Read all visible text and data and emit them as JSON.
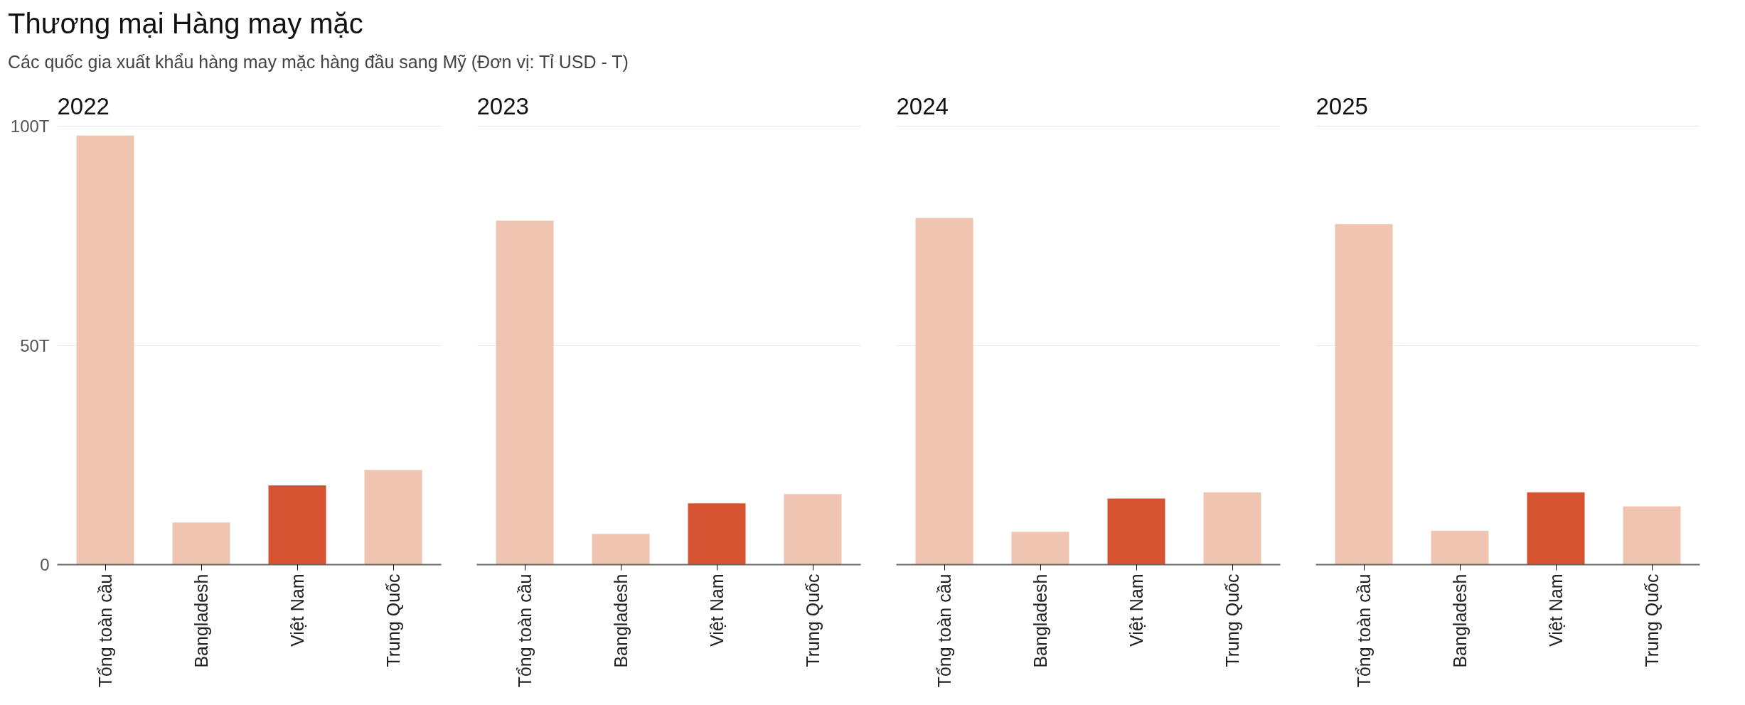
{
  "chart_data": [
    {
      "type": "bar",
      "annotations": [
        "Thương mại Hàng may mặc",
        "Các quốc gia xuất khẩu hàng may mặc hàng đầu sang Mỹ (Đơn vị: Tỉ USD - T)"
      ],
      "title": "2022",
      "categories": [
        "Tổng toàn cầu",
        "Bangladesh",
        "Việt Nam",
        "Trung Quốc"
      ],
      "values": [
        97.9,
        9.6,
        18.1,
        21.6
      ],
      "colors": [
        "#efc5b1",
        "#efc5b1",
        "#d55330",
        "#efc5b1"
      ],
      "ylim": [
        0,
        100
      ],
      "yticks": [
        0,
        {
          "value": 50,
          "label": "50T"
        },
        {
          "value": 100,
          "label": "100T"
        }
      ],
      "grid": "y"
    },
    {
      "type": "bar",
      "title": "2023",
      "categories": [
        "Tổng toàn cầu",
        "Bangladesh",
        "Việt Nam",
        "Trung Quốc"
      ],
      "values": [
        78.5,
        7.0,
        14.0,
        16.1
      ],
      "colors": [
        "#efc5b1",
        "#efc5b1",
        "#d55330",
        "#efc5b1"
      ],
      "ylim": [
        0,
        100
      ],
      "yticks": [
        {
          "value": 0,
          "label": null
        },
        {
          "value": 50,
          "label": null
        },
        {
          "value": 100,
          "label": null
        }
      ],
      "grid": "y",
      "tick_labels": "x"
    },
    {
      "type": "bar",
      "title": "2024",
      "categories": [
        "Tổng toàn cầu",
        "Bangladesh",
        "Việt Nam",
        "Trung Quốc"
      ],
      "values": [
        79.1,
        7.5,
        15.1,
        16.5
      ],
      "colors": [
        "#efc5b1",
        "#efc5b1",
        "#d55330",
        "#efc5b1"
      ],
      "ylim": [
        0,
        100
      ],
      "yticks": [
        {
          "value": 0,
          "label": null
        },
        {
          "value": 50,
          "label": null
        },
        {
          "value": 100,
          "label": null
        }
      ],
      "grid": "y",
      "tick_labels": "x"
    },
    {
      "type": "bar",
      "title": "2025",
      "categories": [
        "Tổng toàn cầu",
        "Bangladesh",
        "Việt Nam",
        "Trung Quốc"
      ],
      "values": [
        77.7,
        7.7,
        16.5,
        13.3
      ],
      "colors": [
        "#efc5b1",
        "#efc5b1",
        "#d55330",
        "#efc5b1"
      ],
      "ylim": [
        0,
        100
      ],
      "yticks": [
        {
          "value": 0,
          "label": null
        },
        {
          "value": 50,
          "label": null
        },
        {
          "value": 100,
          "label": null
        }
      ],
      "grid": "y",
      "tick_labels": "x"
    }
  ]
}
